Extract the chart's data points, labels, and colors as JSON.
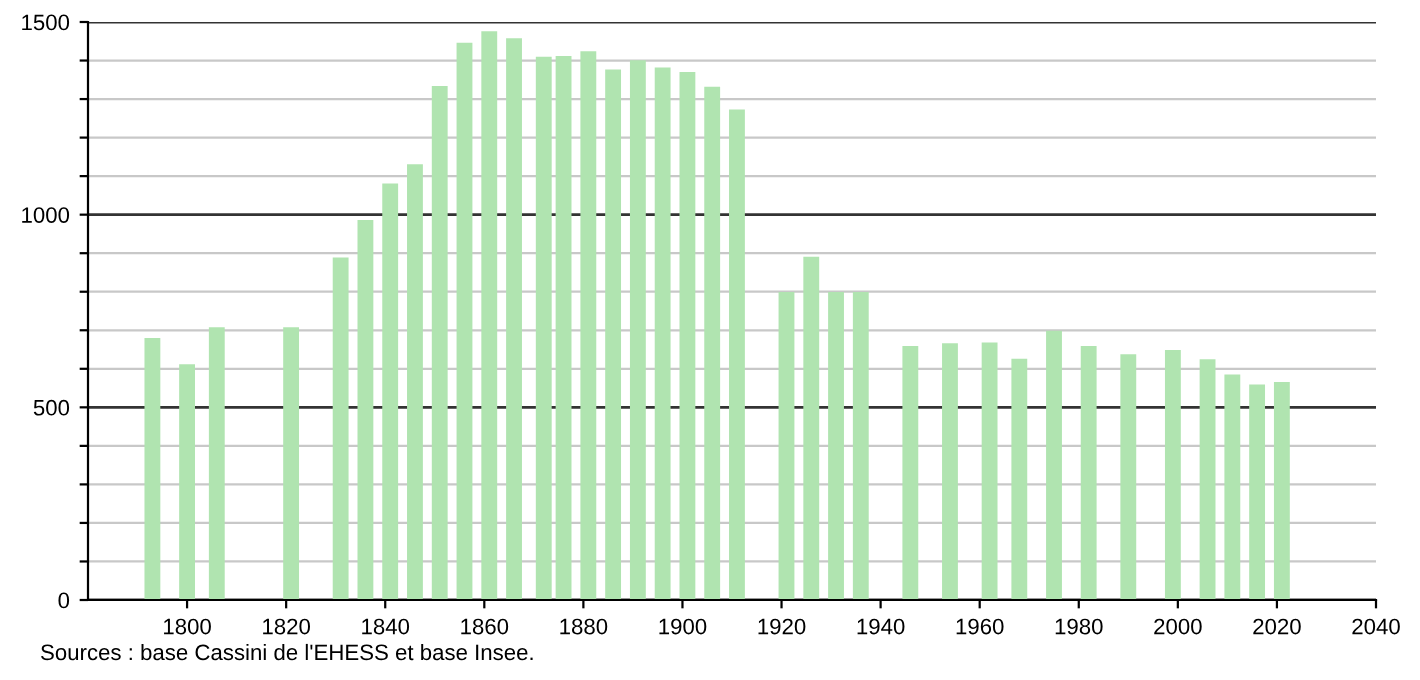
{
  "chart_data": {
    "type": "bar",
    "x": [
      1793,
      1800,
      1806,
      1821,
      1831,
      1836,
      1841,
      1846,
      1851,
      1856,
      1861,
      1866,
      1872,
      1876,
      1881,
      1886,
      1891,
      1896,
      1901,
      1906,
      1911,
      1921,
      1926,
      1931,
      1936,
      1946,
      1954,
      1962,
      1968,
      1975,
      1982,
      1990,
      1999,
      2006,
      2011,
      2016,
      2021
    ],
    "values": [
      680,
      612,
      708,
      708,
      889,
      986,
      1081,
      1131,
      1334,
      1446,
      1476,
      1458,
      1410,
      1412,
      1424,
      1377,
      1401,
      1382,
      1370,
      1332,
      1273,
      799,
      891,
      799,
      799,
      659,
      666,
      668,
      626,
      699,
      659,
      638,
      649,
      625,
      585,
      559,
      566
    ],
    "color": "#b0e4b0",
    "xlim": [
      1780,
      2040
    ],
    "xticks": [
      1800,
      1820,
      1840,
      1860,
      1880,
      1900,
      1920,
      1940,
      1960,
      1980,
      2000,
      2020,
      2040
    ],
    "ylim": [
      0,
      1500
    ],
    "yticks": [
      0,
      {
        "value": 100,
        "label": null
      },
      {
        "value": 200,
        "label": null
      },
      {
        "value": 300,
        "label": null
      },
      {
        "value": 400,
        "label": null
      },
      500,
      {
        "value": 600,
        "label": null
      },
      {
        "value": 700,
        "label": null
      },
      {
        "value": 800,
        "label": null
      },
      {
        "value": 900,
        "label": null
      },
      1000,
      {
        "value": 1100,
        "label": null
      },
      {
        "value": 1200,
        "label": null
      },
      {
        "value": 1300,
        "label": null
      },
      {
        "value": 1400,
        "label": null
      },
      1500
    ],
    "grid": "y",
    "annotations": [
      "Sources : base Cassini de l'EHESS et base Insee."
    ]
  }
}
